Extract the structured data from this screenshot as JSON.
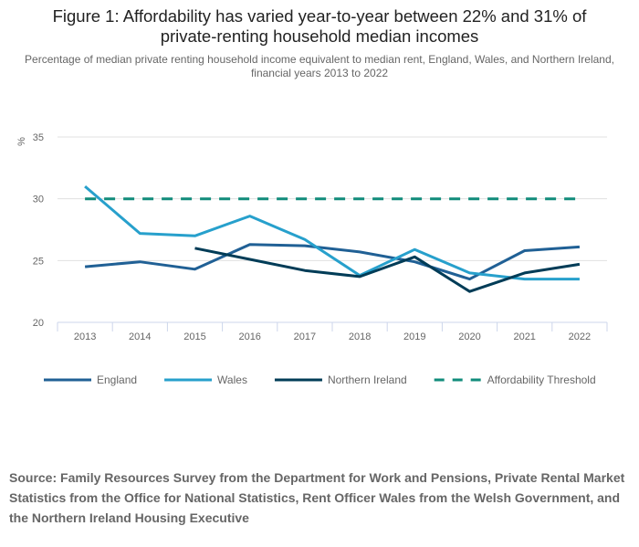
{
  "chart_data": {
    "type": "line",
    "title": "Figure 1: Affordability has varied year-to-year between 22% and 31% of private-renting household median incomes",
    "title_lines": [
      "Figure 1: Affordability has varied year-to-year between 22% and 31% of",
      "private-renting household median incomes"
    ],
    "subtitle": "Percentage of median private renting household income equivalent to median rent, England, Wales, and Northern Ireland, financial years 2013 to 2022",
    "xlabel": "",
    "ylabel": "%",
    "categories": [
      "2013",
      "2014",
      "2015",
      "2016",
      "2017",
      "2018",
      "2019",
      "2020",
      "2021",
      "2022"
    ],
    "ylim": [
      20,
      35
    ],
    "yticks": [
      20,
      25,
      30,
      35
    ],
    "grid": true,
    "legend_position": "bottom",
    "series": [
      {
        "name": "England",
        "color": "#206095",
        "dash": false,
        "values": [
          24.5,
          24.9,
          24.3,
          26.3,
          26.2,
          25.7,
          24.9,
          23.5,
          25.8,
          26.1
        ]
      },
      {
        "name": "Wales",
        "color": "#27a0cc",
        "dash": false,
        "values": [
          31.0,
          27.2,
          27.0,
          28.6,
          26.7,
          23.8,
          25.9,
          24.0,
          23.5,
          23.5
        ]
      },
      {
        "name": "Northern Ireland",
        "color": "#003c57",
        "dash": false,
        "values": [
          null,
          null,
          26.0,
          25.1,
          24.2,
          23.7,
          25.3,
          22.5,
          24.0,
          24.7
        ]
      },
      {
        "name": "Affordability Threshold",
        "color": "#118c7b",
        "dash": true,
        "values": [
          30,
          30,
          30,
          30,
          30,
          30,
          30,
          30,
          30,
          30
        ]
      }
    ]
  },
  "source": "Source: Family Resources Survey from the Department for Work and Pensions, Private Rental Market Statistics from the Office for National Statistics, Rent Officer Wales from the Welsh Government, and the Northern Ireland Housing Executive"
}
